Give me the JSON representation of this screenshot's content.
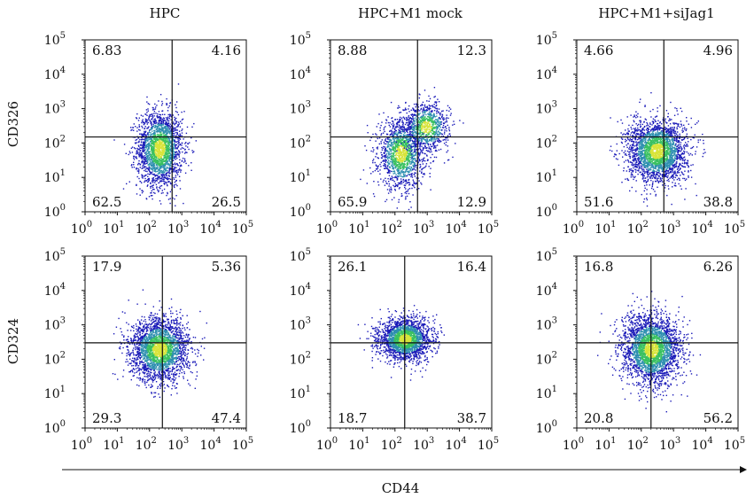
{
  "chart_data": {
    "type": "scatter",
    "description_style": "flow cytometry density plots with quadrant gates",
    "column_titles": [
      "HPC",
      "HPC+M1 mock",
      "HPC+M1+siJag1"
    ],
    "row_labels": [
      "CD326",
      "CD324"
    ],
    "xlabel": "CD44",
    "x_scale": "log",
    "y_scale": "log",
    "xlim": [
      1,
      100000
    ],
    "ylim": [
      1,
      100000
    ],
    "tick_labels": [
      "10",
      "10",
      "10",
      "10",
      "10",
      "10"
    ],
    "tick_exponents": [
      "0",
      "1",
      "2",
      "3",
      "4",
      "5"
    ],
    "colors": {
      "low": "#1a1ab8",
      "mid": "#2e8fb0",
      "high": "#39c060",
      "peak": "#d8e43a"
    },
    "panels": [
      {
        "row": 0,
        "col": 0,
        "title": "HPC",
        "ylabel": "CD326",
        "gate": {
          "x": 500,
          "y": 150
        },
        "quadrants": {
          "top_left": "6.83",
          "top_right": "4.16",
          "bottom_left": "62.5",
          "bottom_right": "26.5"
        },
        "clusters": [
          {
            "x": 200,
            "y": 70,
            "sx": 0.35,
            "sy": 0.55,
            "n": 2200
          }
        ]
      },
      {
        "row": 0,
        "col": 1,
        "title": "HPC+M1 mock",
        "ylabel": "CD326",
        "gate": {
          "x": 500,
          "y": 150
        },
        "quadrants": {
          "top_left": "8.88",
          "top_right": "12.3",
          "bottom_left": "65.9",
          "bottom_right": "12.9"
        },
        "clusters": [
          {
            "x": 150,
            "y": 50,
            "sx": 0.35,
            "sy": 0.5,
            "n": 1500
          },
          {
            "x": 900,
            "y": 300,
            "sx": 0.35,
            "sy": 0.35,
            "n": 900
          }
        ]
      },
      {
        "row": 0,
        "col": 2,
        "title": "HPC+M1+siJag1",
        "ylabel": "CD326",
        "gate": {
          "x": 500,
          "y": 150
        },
        "quadrants": {
          "top_left": "4.66",
          "top_right": "4.96",
          "bottom_left": "51.6",
          "bottom_right": "38.8"
        },
        "clusters": [
          {
            "x": 300,
            "y": 60,
            "sx": 0.45,
            "sy": 0.45,
            "n": 2600
          }
        ]
      },
      {
        "row": 1,
        "col": 0,
        "title": "",
        "ylabel": "CD324",
        "gate": {
          "x": 250,
          "y": 300
        },
        "quadrants": {
          "top_left": "17.9",
          "top_right": "5.36",
          "bottom_left": "29.3",
          "bottom_right": "47.4"
        },
        "clusters": [
          {
            "x": 200,
            "y": 200,
            "sx": 0.45,
            "sy": 0.45,
            "n": 2600
          }
        ]
      },
      {
        "row": 1,
        "col": 1,
        "title": "",
        "ylabel": "CD324",
        "gate": {
          "x": 200,
          "y": 300
        },
        "quadrants": {
          "top_left": "26.1",
          "top_right": "16.4",
          "bottom_left": "18.7",
          "bottom_right": "38.7"
        },
        "clusters": [
          {
            "x": 200,
            "y": 400,
            "sx": 0.4,
            "sy": 0.3,
            "n": 2200
          }
        ]
      },
      {
        "row": 1,
        "col": 2,
        "title": "",
        "ylabel": "CD324",
        "gate": {
          "x": 200,
          "y": 300
        },
        "quadrants": {
          "top_left": "16.8",
          "top_right": "6.26",
          "bottom_left": "20.8",
          "bottom_right": "56.2"
        },
        "clusters": [
          {
            "x": 200,
            "y": 200,
            "sx": 0.45,
            "sy": 0.5,
            "n": 2800
          }
        ]
      }
    ]
  }
}
